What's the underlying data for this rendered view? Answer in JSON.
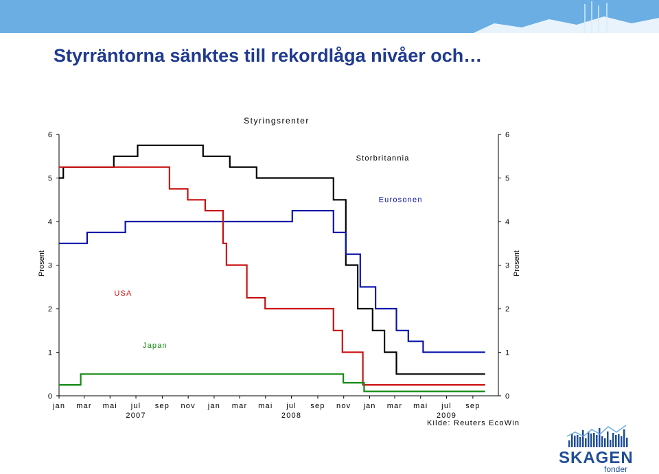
{
  "page": {
    "title": "Styrräntorna sänktes till rekordlåga nivåer och…",
    "logo_text": "SKAGEN",
    "logo_sub": "fonder"
  },
  "colors": {
    "banner": "#6aaee4",
    "title": "#1f3a8f",
    "logo": "#1f4e96"
  },
  "chart_data": {
    "type": "line",
    "title": "Styringsrenter",
    "ylabel_left": "Prosent",
    "ylabel_right": "Prosent",
    "source": "Kilde: Reuters EcoWin",
    "ylim": [
      0,
      6
    ],
    "yticks": [
      0,
      1,
      2,
      3,
      4,
      5,
      6
    ],
    "xlim": [
      "2007-01-01",
      "2009-10-31"
    ],
    "xticks": [
      {
        "label": "jan",
        "date": "2007-01-01"
      },
      {
        "label": "mar",
        "date": "2007-03-01"
      },
      {
        "label": "mai",
        "date": "2007-05-01"
      },
      {
        "label": "jul",
        "date": "2007-07-01"
      },
      {
        "label": "sep",
        "date": "2007-09-01"
      },
      {
        "label": "nov",
        "date": "2007-11-01"
      },
      {
        "label": "jan",
        "date": "2008-01-01"
      },
      {
        "label": "mar",
        "date": "2008-03-01"
      },
      {
        "label": "mai",
        "date": "2008-05-01"
      },
      {
        "label": "jul",
        "date": "2008-07-01"
      },
      {
        "label": "sep",
        "date": "2008-09-01"
      },
      {
        "label": "nov",
        "date": "2008-11-01"
      },
      {
        "label": "jan",
        "date": "2009-01-01"
      },
      {
        "label": "mar",
        "date": "2009-03-01"
      },
      {
        "label": "mai",
        "date": "2009-05-01"
      },
      {
        "label": "jul",
        "date": "2009-07-01"
      },
      {
        "label": "sep",
        "date": "2009-09-01"
      }
    ],
    "year_labels": [
      {
        "label": "2007",
        "date": "2007-07-01"
      },
      {
        "label": "2008",
        "date": "2008-07-01"
      },
      {
        "label": "2009",
        "date": "2009-07-01"
      }
    ],
    "grid": false,
    "series": [
      {
        "name": "Storbritannia",
        "color": "#000000",
        "label_position": {
          "date": "2009-02-01",
          "value": 5.4
        },
        "points": [
          [
            "2007-01-01",
            5.0
          ],
          [
            "2007-01-11",
            5.25
          ],
          [
            "2007-05-10",
            5.5
          ],
          [
            "2007-07-05",
            5.75
          ],
          [
            "2007-12-06",
            5.5
          ],
          [
            "2008-02-07",
            5.25
          ],
          [
            "2008-04-10",
            5.0
          ],
          [
            "2008-10-08",
            4.5
          ],
          [
            "2008-11-06",
            3.0
          ],
          [
            "2008-12-04",
            2.0
          ],
          [
            "2009-01-08",
            1.5
          ],
          [
            "2009-02-05",
            1.0
          ],
          [
            "2009-03-05",
            0.5
          ],
          [
            "2009-09-30",
            0.5
          ]
        ]
      },
      {
        "name": "Eurosonen",
        "color": "#0a14a8",
        "label_position": {
          "date": "2009-03-15",
          "value": 4.45
        },
        "points": [
          [
            "2007-01-01",
            3.5
          ],
          [
            "2007-03-08",
            3.75
          ],
          [
            "2007-06-06",
            4.0
          ],
          [
            "2008-07-03",
            4.25
          ],
          [
            "2008-10-08",
            3.75
          ],
          [
            "2008-11-06",
            3.25
          ],
          [
            "2008-12-10",
            2.5
          ],
          [
            "2009-01-15",
            2.0
          ],
          [
            "2009-03-05",
            1.5
          ],
          [
            "2009-04-02",
            1.25
          ],
          [
            "2009-05-07",
            1.0
          ],
          [
            "2009-09-30",
            1.0
          ]
        ]
      },
      {
        "name": "USA",
        "color": "#cc1111",
        "label_position": {
          "date": "2007-06-01",
          "value": 2.3
        },
        "points": [
          [
            "2007-01-01",
            5.25
          ],
          [
            "2007-09-18",
            4.75
          ],
          [
            "2007-10-31",
            4.5
          ],
          [
            "2007-12-11",
            4.25
          ],
          [
            "2008-01-22",
            3.5
          ],
          [
            "2008-01-30",
            3.0
          ],
          [
            "2008-03-18",
            2.25
          ],
          [
            "2008-04-30",
            2.0
          ],
          [
            "2008-10-08",
            1.5
          ],
          [
            "2008-10-29",
            1.0
          ],
          [
            "2008-12-16",
            0.25
          ],
          [
            "2009-09-30",
            0.25
          ]
        ]
      },
      {
        "name": "Japan",
        "color": "#138a13",
        "label_position": {
          "date": "2007-08-15",
          "value": 1.1
        },
        "points": [
          [
            "2007-01-01",
            0.25
          ],
          [
            "2007-02-21",
            0.5
          ],
          [
            "2008-10-31",
            0.3
          ],
          [
            "2008-12-19",
            0.1
          ],
          [
            "2009-09-30",
            0.1
          ]
        ]
      }
    ]
  }
}
